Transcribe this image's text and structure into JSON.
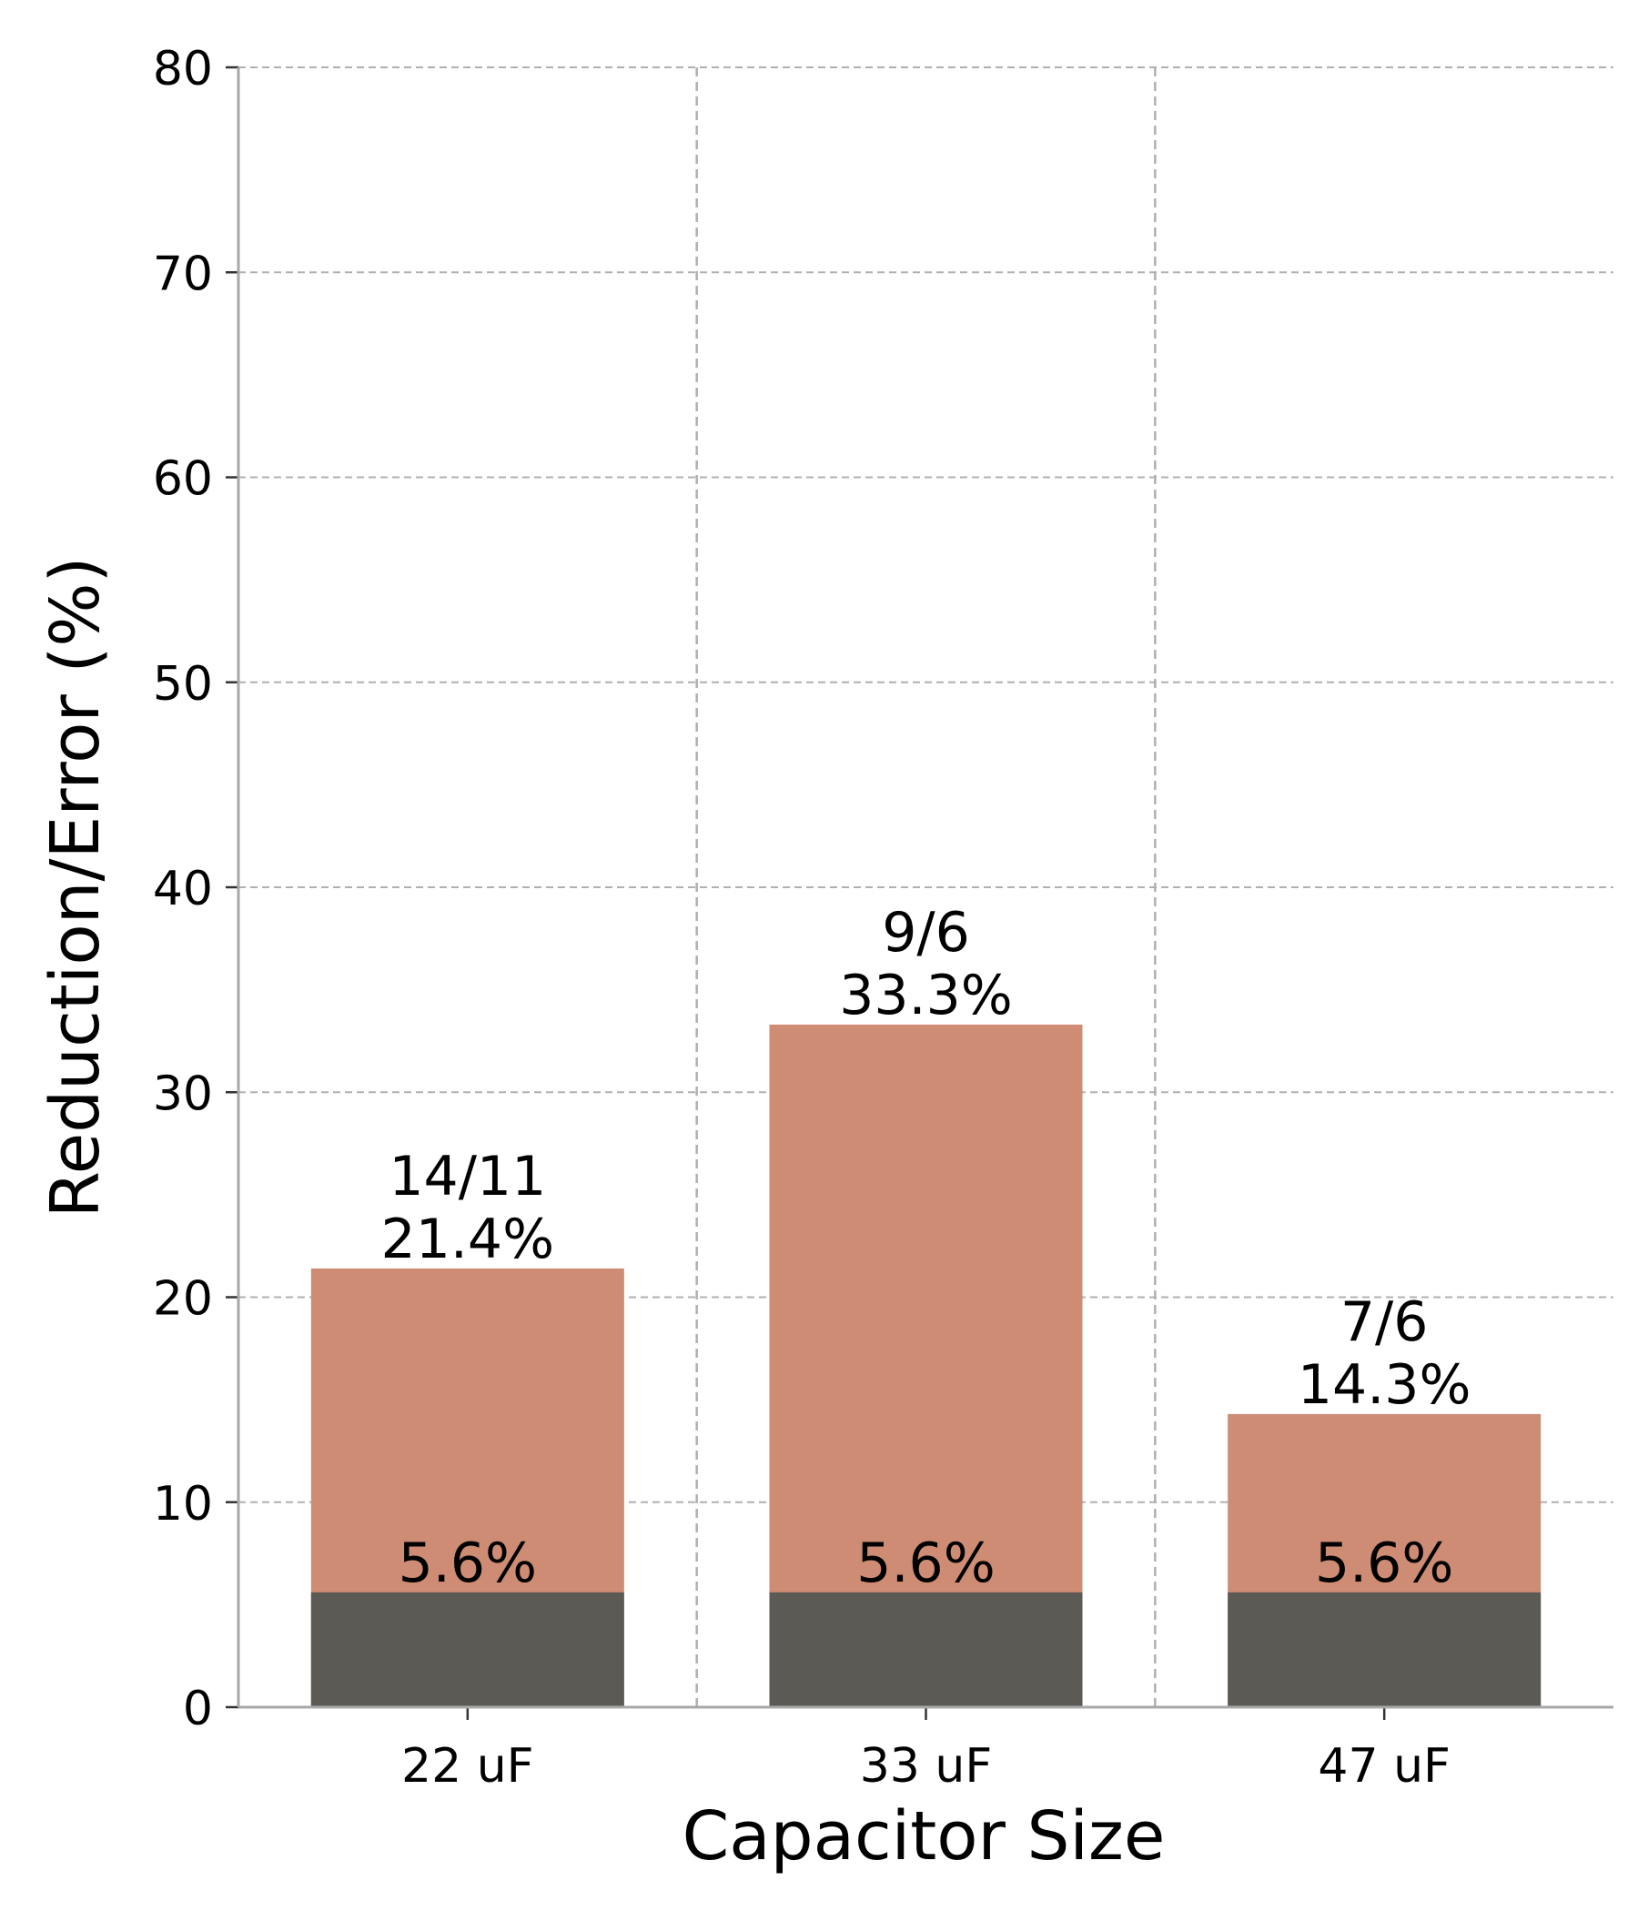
{
  "chart_data": {
    "type": "bar",
    "stacked": true,
    "xlabel": "Capacitor Size",
    "ylabel": "Reduction/Error (%)",
    "categories": [
      "22 uF",
      "33 uF",
      "47 uF"
    ],
    "ylim": [
      0,
      80
    ],
    "yticks": [
      0,
      10,
      20,
      30,
      40,
      50,
      60,
      70,
      80
    ],
    "grid": true,
    "series": [
      {
        "values": [
          5.6,
          5.6,
          5.6
        ],
        "color": "#5c5a55",
        "labels": [
          "5.6%",
          "5.6%",
          "5.6%"
        ]
      },
      {
        "values": [
          21.4,
          33.3,
          14.3
        ],
        "color": "#cd8c73",
        "labels": [
          "14/11\n21.4%",
          "9/6\n33.3%",
          "7/6\n14.3%"
        ]
      }
    ]
  },
  "colors": {
    "grid": "#b0b0b0",
    "axis": "#a8a8a8"
  }
}
